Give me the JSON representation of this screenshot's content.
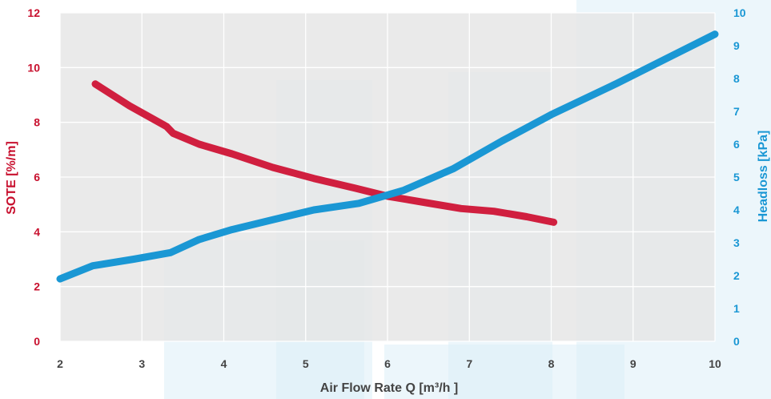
{
  "chart_data": {
    "type": "line",
    "xlabel": "Air Flow Rate Q [m³/h ]",
    "ylabel_left": "SOTE [%/m]",
    "ylabel_right": "Headloss [kPa]",
    "xlim": [
      2,
      10
    ],
    "ylim_left": [
      0,
      12
    ],
    "ylim_right": [
      0,
      10
    ],
    "x_ticks": [
      "2",
      "3",
      "4",
      "5",
      "6",
      "7",
      "8",
      "9",
      "10"
    ],
    "y_left_ticks": [
      "0",
      "2",
      "4",
      "6",
      "8",
      "10",
      "12"
    ],
    "y_right_ticks": [
      "0",
      "1",
      "2",
      "3",
      "4",
      "5",
      "6",
      "7",
      "8",
      "9",
      "10"
    ],
    "grid": true,
    "colors": {
      "sote": "#d01f3f",
      "headloss": "#1a97d4",
      "plot_bg": "#e5e5e5",
      "left_axis": "#c8102e",
      "right_axis": "#1a97d4"
    },
    "series": [
      {
        "id": "sote",
        "axis": "left",
        "x": [
          2.43,
          2.85,
          3.3,
          3.38,
          3.7,
          4.1,
          4.6,
          5.1,
          5.6,
          6.0,
          6.5,
          6.9,
          7.3,
          7.7,
          8.03
        ],
        "values": [
          9.4,
          8.6,
          7.85,
          7.6,
          7.2,
          6.85,
          6.35,
          5.95,
          5.6,
          5.3,
          5.05,
          4.85,
          4.75,
          4.55,
          4.35
        ]
      },
      {
        "id": "headloss",
        "axis": "right",
        "x": [
          2.0,
          2.4,
          2.9,
          3.35,
          3.7,
          4.1,
          4.6,
          5.1,
          5.65,
          6.2,
          6.8,
          7.4,
          8.0,
          8.8,
          9.4,
          10.0
        ],
        "values": [
          1.9,
          2.3,
          2.5,
          2.7,
          3.1,
          3.4,
          3.7,
          4.0,
          4.2,
          4.6,
          5.25,
          6.1,
          6.9,
          7.85,
          8.6,
          9.35
        ]
      }
    ]
  }
}
